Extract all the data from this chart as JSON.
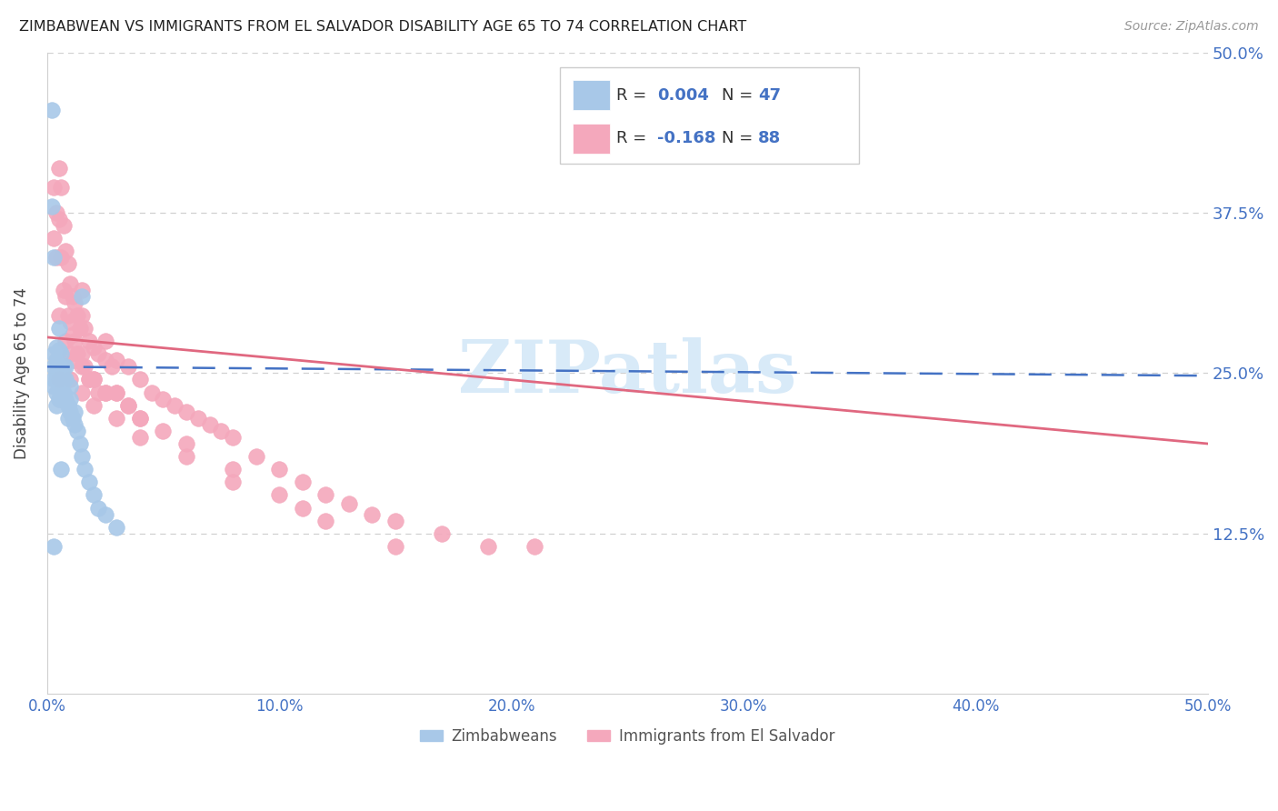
{
  "title": "ZIMBABWEAN VS IMMIGRANTS FROM EL SALVADOR DISABILITY AGE 65 TO 74 CORRELATION CHART",
  "source": "Source: ZipAtlas.com",
  "ylabel": "Disability Age 65 to 74",
  "xlim": [
    0.0,
    0.5
  ],
  "ylim": [
    0.0,
    0.5
  ],
  "background_color": "#ffffff",
  "grid_color": "#d0d0d0",
  "axis_label_color": "#4472c4",
  "zimbabwe_color": "#a8c8e8",
  "salvador_color": "#f4a8bc",
  "zimbabwe_line_color": "#4472c4",
  "salvador_line_color": "#e06880",
  "watermark": "ZIPatlas",
  "watermark_color": "#d8eaf8",
  "zim_line_start_y": 0.255,
  "zim_line_end_y": 0.248,
  "sal_line_start_y": 0.278,
  "sal_line_end_y": 0.195,
  "zim_x": [
    0.002,
    0.002,
    0.003,
    0.003,
    0.003,
    0.003,
    0.003,
    0.004,
    0.004,
    0.004,
    0.004,
    0.004,
    0.004,
    0.005,
    0.005,
    0.005,
    0.005,
    0.005,
    0.006,
    0.006,
    0.006,
    0.007,
    0.007,
    0.007,
    0.008,
    0.008,
    0.008,
    0.009,
    0.009,
    0.01,
    0.01,
    0.01,
    0.011,
    0.012,
    0.012,
    0.013,
    0.014,
    0.015,
    0.016,
    0.018,
    0.02,
    0.022,
    0.025,
    0.03,
    0.003,
    0.006,
    0.015
  ],
  "zim_y": [
    0.455,
    0.38,
    0.34,
    0.265,
    0.255,
    0.245,
    0.24,
    0.27,
    0.26,
    0.25,
    0.245,
    0.235,
    0.225,
    0.285,
    0.268,
    0.255,
    0.245,
    0.23,
    0.265,
    0.255,
    0.245,
    0.255,
    0.245,
    0.235,
    0.255,
    0.245,
    0.23,
    0.225,
    0.215,
    0.24,
    0.23,
    0.22,
    0.215,
    0.22,
    0.21,
    0.205,
    0.195,
    0.185,
    0.175,
    0.165,
    0.155,
    0.145,
    0.14,
    0.13,
    0.115,
    0.175,
    0.31
  ],
  "sal_x": [
    0.003,
    0.003,
    0.004,
    0.004,
    0.005,
    0.005,
    0.006,
    0.006,
    0.007,
    0.007,
    0.008,
    0.008,
    0.009,
    0.009,
    0.01,
    0.01,
    0.011,
    0.011,
    0.012,
    0.012,
    0.013,
    0.013,
    0.014,
    0.015,
    0.015,
    0.016,
    0.016,
    0.018,
    0.018,
    0.02,
    0.02,
    0.022,
    0.022,
    0.025,
    0.025,
    0.028,
    0.03,
    0.03,
    0.035,
    0.035,
    0.04,
    0.04,
    0.045,
    0.05,
    0.055,
    0.06,
    0.065,
    0.07,
    0.075,
    0.08,
    0.09,
    0.1,
    0.11,
    0.12,
    0.13,
    0.14,
    0.15,
    0.17,
    0.19,
    0.21,
    0.005,
    0.008,
    0.01,
    0.012,
    0.015,
    0.018,
    0.02,
    0.025,
    0.03,
    0.035,
    0.04,
    0.05,
    0.06,
    0.08,
    0.1,
    0.12,
    0.15,
    0.005,
    0.01,
    0.015,
    0.02,
    0.03,
    0.04,
    0.06,
    0.08,
    0.11,
    0.015,
    0.025
  ],
  "sal_y": [
    0.395,
    0.355,
    0.375,
    0.34,
    0.41,
    0.37,
    0.395,
    0.34,
    0.365,
    0.315,
    0.345,
    0.31,
    0.335,
    0.295,
    0.32,
    0.29,
    0.31,
    0.28,
    0.305,
    0.275,
    0.295,
    0.265,
    0.285,
    0.295,
    0.265,
    0.285,
    0.255,
    0.275,
    0.245,
    0.27,
    0.245,
    0.265,
    0.235,
    0.26,
    0.235,
    0.255,
    0.26,
    0.235,
    0.255,
    0.225,
    0.245,
    0.215,
    0.235,
    0.23,
    0.225,
    0.22,
    0.215,
    0.21,
    0.205,
    0.2,
    0.185,
    0.175,
    0.165,
    0.155,
    0.148,
    0.14,
    0.135,
    0.125,
    0.115,
    0.115,
    0.295,
    0.275,
    0.265,
    0.26,
    0.255,
    0.245,
    0.245,
    0.235,
    0.235,
    0.225,
    0.215,
    0.205,
    0.195,
    0.175,
    0.155,
    0.135,
    0.115,
    0.245,
    0.245,
    0.235,
    0.225,
    0.215,
    0.2,
    0.185,
    0.165,
    0.145,
    0.315,
    0.275
  ]
}
